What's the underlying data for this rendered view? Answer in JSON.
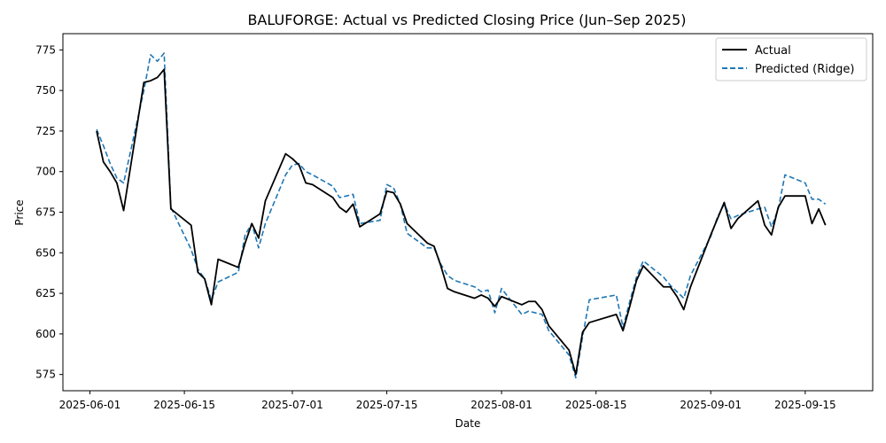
{
  "chart_data": {
    "type": "line",
    "title": "BALUFORGE: Actual vs Predicted Closing Price (Jun–Sep 2025)",
    "xlabel": "Date",
    "ylabel": "Price",
    "xlim": [
      "2025-05-28",
      "2025-09-25"
    ],
    "ylim": [
      565,
      785
    ],
    "x_ticks": [
      "2025-06-01",
      "2025-06-15",
      "2025-07-01",
      "2025-07-15",
      "2025-08-01",
      "2025-08-15",
      "2025-09-01",
      "2025-09-15"
    ],
    "y_ticks": [
      575,
      600,
      625,
      650,
      675,
      700,
      725,
      750,
      775
    ],
    "grid": false,
    "legend_position": "upper right",
    "x": [
      "2025-06-02",
      "2025-06-03",
      "2025-06-04",
      "2025-06-05",
      "2025-06-06",
      "2025-06-09",
      "2025-06-10",
      "2025-06-11",
      "2025-06-12",
      "2025-06-13",
      "2025-06-16",
      "2025-06-17",
      "2025-06-18",
      "2025-06-19",
      "2025-06-20",
      "2025-06-23",
      "2025-06-24",
      "2025-06-25",
      "2025-06-26",
      "2025-06-27",
      "2025-06-30",
      "2025-07-01",
      "2025-07-02",
      "2025-07-03",
      "2025-07-04",
      "2025-07-07",
      "2025-07-08",
      "2025-07-09",
      "2025-07-10",
      "2025-07-11",
      "2025-07-14",
      "2025-07-15",
      "2025-07-16",
      "2025-07-17",
      "2025-07-18",
      "2025-07-21",
      "2025-07-22",
      "2025-07-23",
      "2025-07-24",
      "2025-07-25",
      "2025-07-28",
      "2025-07-29",
      "2025-07-30",
      "2025-07-31",
      "2025-08-01",
      "2025-08-04",
      "2025-08-05",
      "2025-08-06",
      "2025-08-07",
      "2025-08-08",
      "2025-08-11",
      "2025-08-12",
      "2025-08-13",
      "2025-08-14",
      "2025-08-18",
      "2025-08-19",
      "2025-08-20",
      "2025-08-21",
      "2025-08-22",
      "2025-08-25",
      "2025-08-26",
      "2025-08-27",
      "2025-08-28",
      "2025-08-29",
      "2025-09-01",
      "2025-09-02",
      "2025-09-03",
      "2025-09-04",
      "2025-09-05",
      "2025-09-08",
      "2025-09-09",
      "2025-09-10",
      "2025-09-11",
      "2025-09-12",
      "2025-09-15",
      "2025-09-16",
      "2025-09-17",
      "2025-09-18"
    ],
    "series": [
      {
        "name": "Actual",
        "color": "#000000",
        "style": "solid",
        "values": [
          725,
          706,
          700,
          693,
          676,
          755,
          756,
          758,
          763,
          677,
          667,
          638,
          634,
          618,
          646,
          641,
          656,
          668,
          659,
          682,
          711,
          708,
          704,
          693,
          692,
          684,
          678,
          675,
          680,
          666,
          674,
          688,
          687,
          680,
          668,
          656,
          654,
          642,
          628,
          626,
          622,
          624,
          622,
          617,
          623,
          618,
          620,
          620,
          615,
          605,
          590,
          575,
          601,
          607,
          612,
          602,
          617,
          633,
          642,
          629,
          629,
          623,
          615,
          629,
          661,
          671,
          681,
          665,
          671,
          682,
          667,
          661,
          678,
          685,
          685,
          668,
          677,
          667
        ]
      },
      {
        "name": "Predicted (Ridge)",
        "color": "#1f77b4",
        "style": "dashed",
        "values": [
          726,
          716,
          705,
          696,
          693,
          750,
          772,
          768,
          773,
          678,
          652,
          640,
          634,
          621,
          632,
          638,
          661,
          668,
          653,
          668,
          698,
          704,
          705,
          700,
          698,
          691,
          684,
          685,
          686,
          668,
          670,
          692,
          690,
          680,
          662,
          653,
          653,
          643,
          636,
          633,
          629,
          626,
          627,
          613,
          628,
          612,
          614,
          613,
          612,
          602,
          587,
          573,
          598,
          621,
          624,
          604,
          620,
          635,
          645,
          635,
          630,
          626,
          622,
          636,
          660,
          672,
          680,
          671,
          673,
          677,
          678,
          666,
          677,
          698,
          693,
          683,
          683,
          680
        ]
      }
    ]
  }
}
